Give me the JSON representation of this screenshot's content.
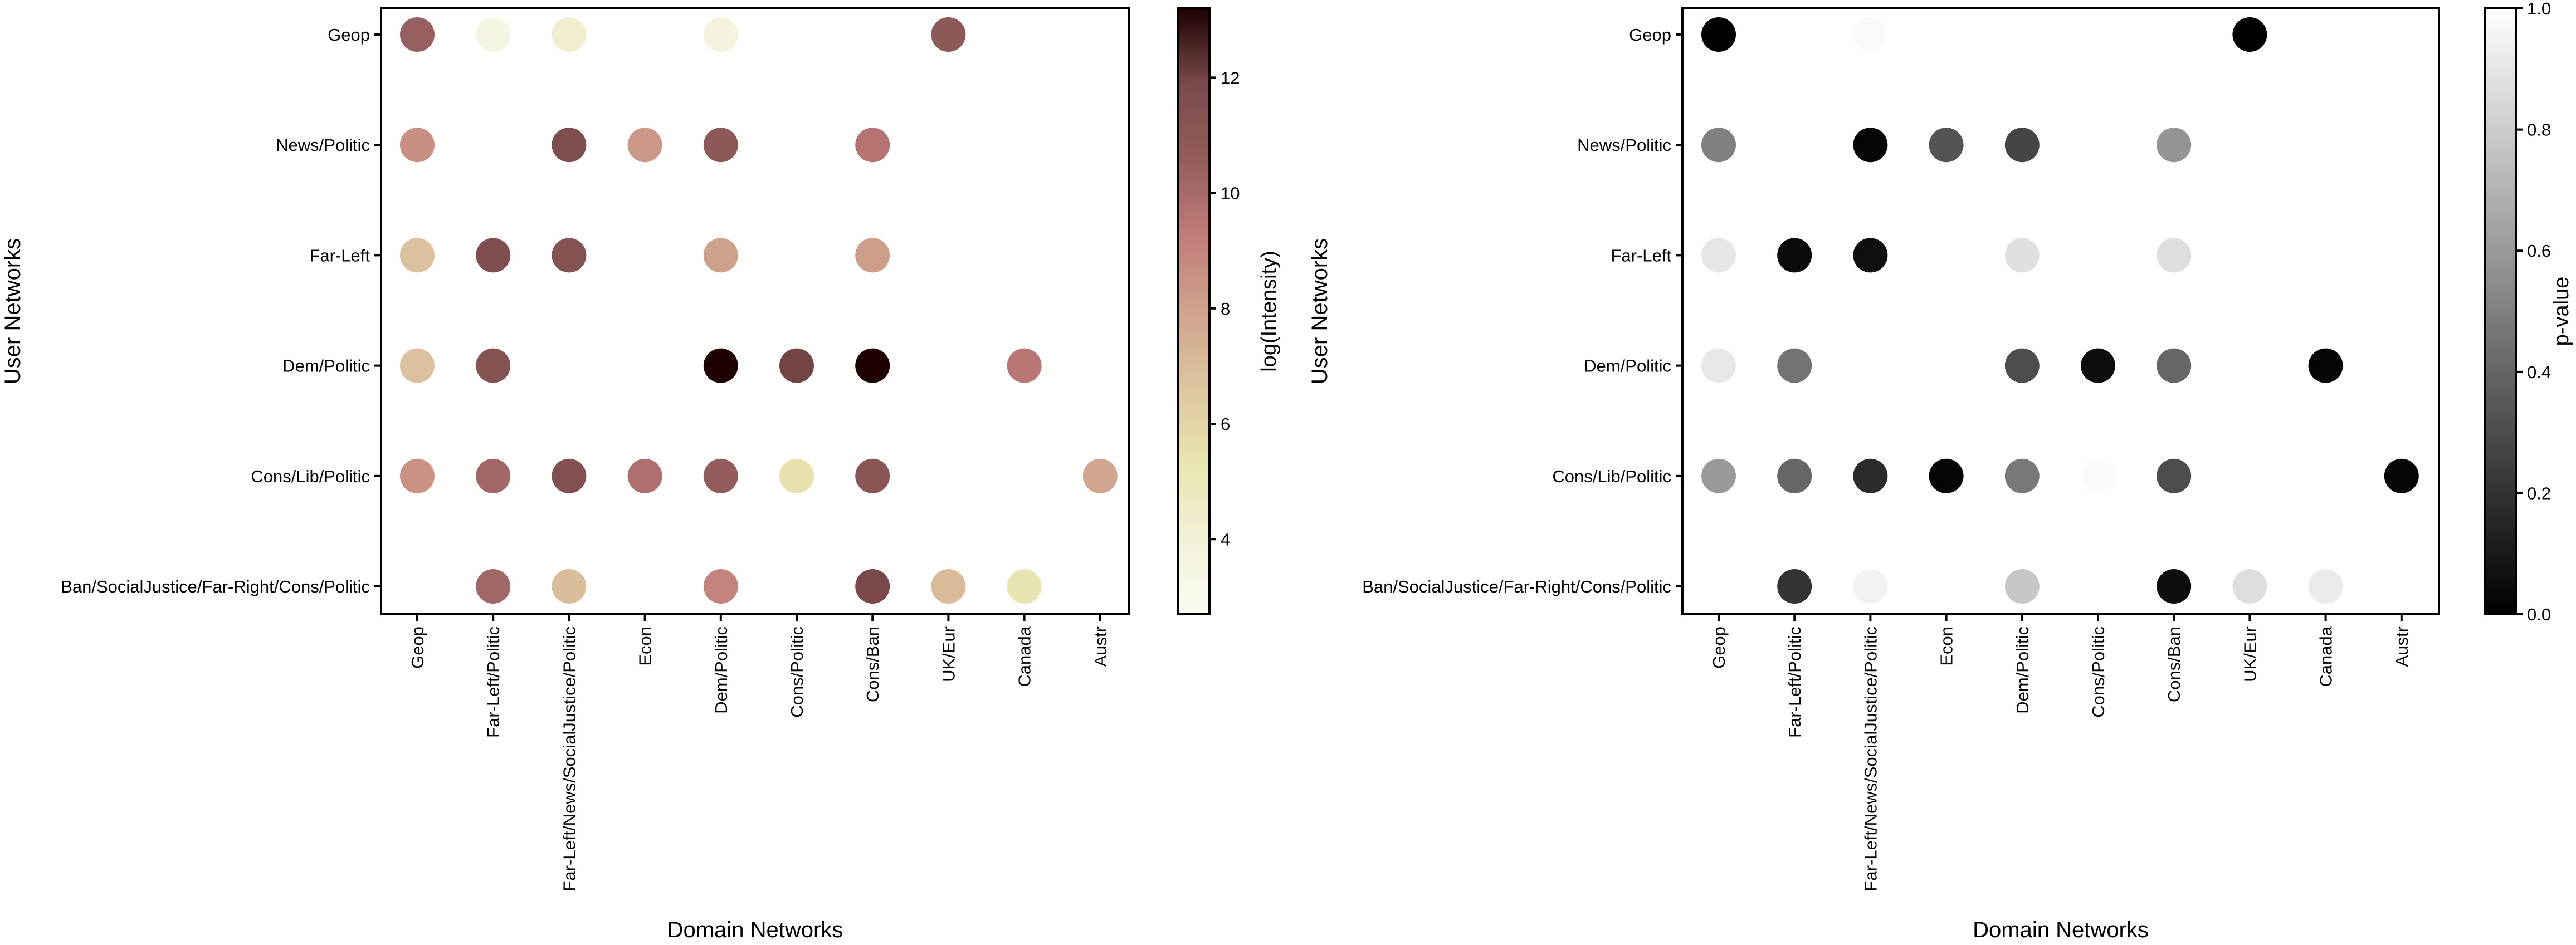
{
  "chart_data": [
    {
      "type": "scatter",
      "subtype": "bubble-matrix",
      "xlabel": "Domain Networks",
      "ylabel": "User Networks",
      "x_categories": [
        "Geop",
        "Far-Left/Politic",
        "Far-Left/News/SocialJustice/Politic",
        "Econ",
        "Dem/Politic",
        "Cons/Politic",
        "Cons/Ban",
        "UK/Eur",
        "Canada",
        "Austr"
      ],
      "y_categories": [
        "Geop",
        "News/Politic",
        "Far-Left",
        "Dem/Politic",
        "Cons/Lib/Politic",
        "Ban/SocialJustice/Far-Right/Cons/Politic"
      ],
      "colorbar": {
        "label": "log(Intensity)",
        "range": [
          2.7,
          13.2
        ],
        "ticks": [
          "4",
          "6",
          "8",
          "10",
          "12"
        ],
        "tick_values": [
          4,
          6,
          8,
          10,
          12
        ],
        "colormap": [
          "#fbfbf3",
          "#f3f1d8",
          "#e8e5b0",
          "#ddc59f",
          "#cfa28c",
          "#c07c79",
          "#955e5e",
          "#7a4a4a",
          "#1e0000"
        ]
      },
      "points": [
        {
          "x": "Geop",
          "y": "Geop",
          "value": 10.5
        },
        {
          "x": "Far-Left/Politic",
          "y": "Geop",
          "value": 3.5
        },
        {
          "x": "Far-Left/News/SocialJustice/Politic",
          "y": "Geop",
          "value": 4.3
        },
        {
          "x": "Dem/Politic",
          "y": "Geop",
          "value": 3.7
        },
        {
          "x": "UK/Eur",
          "y": "Geop",
          "value": 11.0
        },
        {
          "x": "Geop",
          "y": "News/Politic",
          "value": 8.6
        },
        {
          "x": "Far-Left/News/SocialJustice/Politic",
          "y": "News/Politic",
          "value": 11.7
        },
        {
          "x": "Econ",
          "y": "News/Politic",
          "value": 8.3
        },
        {
          "x": "Dem/Politic",
          "y": "News/Politic",
          "value": 11.0
        },
        {
          "x": "Cons/Ban",
          "y": "News/Politic",
          "value": 9.6
        },
        {
          "x": "Geop",
          "y": "Far-Left",
          "value": 6.8
        },
        {
          "x": "Far-Left/Politic",
          "y": "Far-Left",
          "value": 11.6
        },
        {
          "x": "Far-Left/News/SocialJustice/Politic",
          "y": "Far-Left",
          "value": 11.3
        },
        {
          "x": "Dem/Politic",
          "y": "Far-Left",
          "value": 8.0
        },
        {
          "x": "Cons/Ban",
          "y": "Far-Left",
          "value": 8.1
        },
        {
          "x": "Geop",
          "y": "Dem/Politic",
          "value": 6.8
        },
        {
          "x": "Far-Left/Politic",
          "y": "Dem/Politic",
          "value": 11.3
        },
        {
          "x": "Dem/Politic",
          "y": "Dem/Politic",
          "value": 13.2
        },
        {
          "x": "Cons/Politic",
          "y": "Dem/Politic",
          "value": 12.0
        },
        {
          "x": "Cons/Ban",
          "y": "Dem/Politic",
          "value": 13.2
        },
        {
          "x": "Canada",
          "y": "Dem/Politic",
          "value": 9.5
        },
        {
          "x": "Geop",
          "y": "Cons/Lib/Politic",
          "value": 8.5
        },
        {
          "x": "Far-Left/Politic",
          "y": "Cons/Lib/Politic",
          "value": 10.2
        },
        {
          "x": "Far-Left/News/SocialJustice/Politic",
          "y": "Cons/Lib/Politic",
          "value": 11.5
        },
        {
          "x": "Econ",
          "y": "Cons/Lib/Politic",
          "value": 9.8
        },
        {
          "x": "Dem/Politic",
          "y": "Cons/Lib/Politic",
          "value": 10.7
        },
        {
          "x": "Cons/Politic",
          "y": "Cons/Lib/Politic",
          "value": 5.5
        },
        {
          "x": "Cons/Ban",
          "y": "Cons/Lib/Politic",
          "value": 11.2
        },
        {
          "x": "Austr",
          "y": "Cons/Lib/Politic",
          "value": 7.8
        },
        {
          "x": "Far-Left/Politic",
          "y": "Ban/SocialJustice/Far-Right/Cons/Politic",
          "value": 10.2
        },
        {
          "x": "Far-Left/News/SocialJustice/Politic",
          "y": "Ban/SocialJustice/Far-Right/Cons/Politic",
          "value": 6.9
        },
        {
          "x": "Dem/Politic",
          "y": "Ban/SocialJustice/Far-Right/Cons/Politic",
          "value": 9.0
        },
        {
          "x": "Cons/Ban",
          "y": "Ban/SocialJustice/Far-Right/Cons/Politic",
          "value": 11.9
        },
        {
          "x": "UK/Eur",
          "y": "Ban/SocialJustice/Far-Right/Cons/Politic",
          "value": 7.0
        },
        {
          "x": "Canada",
          "y": "Ban/SocialJustice/Far-Right/Cons/Politic",
          "value": 5.3
        }
      ]
    },
    {
      "type": "scatter",
      "subtype": "bubble-matrix",
      "xlabel": "Domain Networks",
      "ylabel": "User Networks",
      "x_categories": [
        "Geop",
        "Far-Left/Politic",
        "Far-Left/News/SocialJustice/Politic",
        "Econ",
        "Dem/Politic",
        "Cons/Politic",
        "Cons/Ban",
        "UK/Eur",
        "Canada",
        "Austr"
      ],
      "y_categories": [
        "Geop",
        "News/Politic",
        "Far-Left",
        "Dem/Politic",
        "Cons/Lib/Politic",
        "Ban/SocialJustice/Far-Right/Cons/Politic"
      ],
      "colorbar": {
        "label": "p-value",
        "range": [
          0,
          1
        ],
        "ticks": [
          "0.0",
          "0.2",
          "0.4",
          "0.6",
          "0.8",
          "1.0"
        ],
        "tick_values": [
          0,
          0.2,
          0.4,
          0.6,
          0.8,
          1.0
        ],
        "colormap": [
          "#000000",
          "#ffffff"
        ]
      },
      "points": [
        {
          "x": "Geop",
          "y": "Geop",
          "value": 0.0
        },
        {
          "x": "Far-Left/Politic",
          "y": "Geop",
          "value": 1.0
        },
        {
          "x": "Far-Left/News/SocialJustice/Politic",
          "y": "Geop",
          "value": 0.98
        },
        {
          "x": "Dem/Politic",
          "y": "Geop",
          "value": 1.0
        },
        {
          "x": "UK/Eur",
          "y": "Geop",
          "value": 0.0
        },
        {
          "x": "Geop",
          "y": "News/Politic",
          "value": 0.5
        },
        {
          "x": "Far-Left/News/SocialJustice/Politic",
          "y": "News/Politic",
          "value": 0.02
        },
        {
          "x": "Econ",
          "y": "News/Politic",
          "value": 0.33
        },
        {
          "x": "Dem/Politic",
          "y": "News/Politic",
          "value": 0.27
        },
        {
          "x": "Cons/Ban",
          "y": "News/Politic",
          "value": 0.58
        },
        {
          "x": "Geop",
          "y": "Far-Left",
          "value": 0.9
        },
        {
          "x": "Far-Left/Politic",
          "y": "Far-Left",
          "value": 0.04
        },
        {
          "x": "Far-Left/News/SocialJustice/Politic",
          "y": "Far-Left",
          "value": 0.06
        },
        {
          "x": "Dem/Politic",
          "y": "Far-Left",
          "value": 0.88
        },
        {
          "x": "Cons/Ban",
          "y": "Far-Left",
          "value": 0.87
        },
        {
          "x": "Geop",
          "y": "Dem/Politic",
          "value": 0.91
        },
        {
          "x": "Far-Left/Politic",
          "y": "Dem/Politic",
          "value": 0.45
        },
        {
          "x": "Dem/Politic",
          "y": "Dem/Politic",
          "value": 0.3
        },
        {
          "x": "Cons/Politic",
          "y": "Dem/Politic",
          "value": 0.05
        },
        {
          "x": "Cons/Ban",
          "y": "Dem/Politic",
          "value": 0.4
        },
        {
          "x": "Canada",
          "y": "Dem/Politic",
          "value": 0.02
        },
        {
          "x": "Geop",
          "y": "Cons/Lib/Politic",
          "value": 0.6
        },
        {
          "x": "Far-Left/Politic",
          "y": "Cons/Lib/Politic",
          "value": 0.4
        },
        {
          "x": "Far-Left/News/SocialJustice/Politic",
          "y": "Cons/Lib/Politic",
          "value": 0.17
        },
        {
          "x": "Econ",
          "y": "Cons/Lib/Politic",
          "value": 0.02
        },
        {
          "x": "Dem/Politic",
          "y": "Cons/Lib/Politic",
          "value": 0.47
        },
        {
          "x": "Cons/Politic",
          "y": "Cons/Lib/Politic",
          "value": 0.98
        },
        {
          "x": "Cons/Ban",
          "y": "Cons/Lib/Politic",
          "value": 0.3
        },
        {
          "x": "Austr",
          "y": "Cons/Lib/Politic",
          "value": 0.02
        },
        {
          "x": "Far-Left/Politic",
          "y": "Ban/SocialJustice/Far-Right/Cons/Politic",
          "value": 0.2
        },
        {
          "x": "Far-Left/News/SocialJustice/Politic",
          "y": "Ban/SocialJustice/Far-Right/Cons/Politic",
          "value": 0.95
        },
        {
          "x": "Dem/Politic",
          "y": "Ban/SocialJustice/Far-Right/Cons/Politic",
          "value": 0.78
        },
        {
          "x": "Cons/Ban",
          "y": "Ban/SocialJustice/Far-Right/Cons/Politic",
          "value": 0.05
        },
        {
          "x": "UK/Eur",
          "y": "Ban/SocialJustice/Far-Right/Cons/Politic",
          "value": 0.87
        },
        {
          "x": "Canada",
          "y": "Ban/SocialJustice/Far-Right/Cons/Politic",
          "value": 0.92
        }
      ]
    }
  ]
}
